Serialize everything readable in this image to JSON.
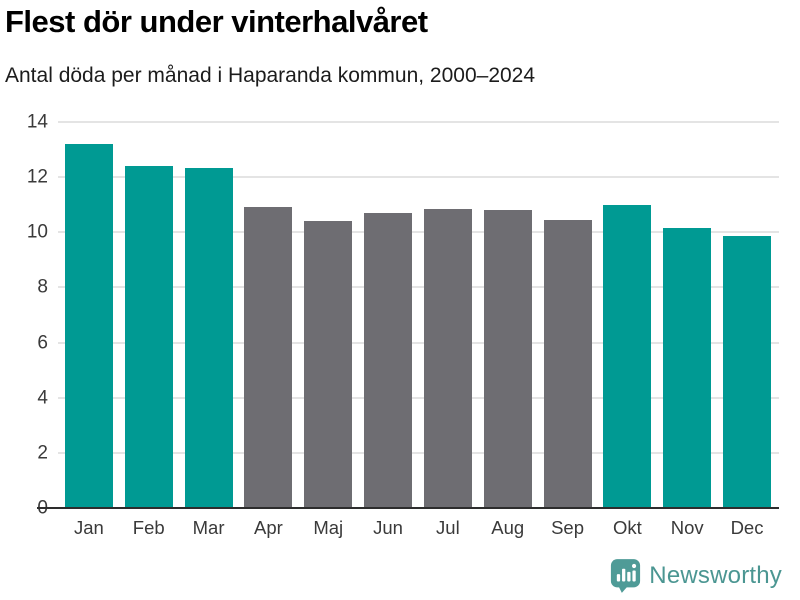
{
  "title": "Flest dör under vinterhalvåret",
  "subtitle": "Antal döda per månad i Haparanda kommun, 2000–2024",
  "branding": {
    "name": "Newsworthy",
    "icon": "newsworthy-speech-bubble-barchart-icon",
    "color": "#4b9692",
    "icon_color": "#4f9b97"
  },
  "colors": {
    "winter_bar": "#009a93",
    "summer_bar": "#6e6d72",
    "gridline": "#e4e4e4",
    "axis_line": "#2d2d2d",
    "tick_text": "#3a3a3a"
  },
  "chart_data": {
    "type": "bar",
    "title": "Flest dör under vinterhalvåret",
    "subtitle": "Antal döda per månad i Haparanda kommun, 2000–2024",
    "categories": [
      "Jan",
      "Feb",
      "Mar",
      "Apr",
      "Maj",
      "Jun",
      "Jul",
      "Aug",
      "Sep",
      "Okt",
      "Nov",
      "Dec"
    ],
    "values": [
      13.2,
      12.4,
      12.35,
      10.9,
      10.4,
      10.7,
      10.85,
      10.8,
      10.45,
      11.0,
      10.15,
      9.85
    ],
    "bar_colors": [
      "#009a93",
      "#009a93",
      "#009a93",
      "#6e6d72",
      "#6e6d72",
      "#6e6d72",
      "#6e6d72",
      "#6e6d72",
      "#6e6d72",
      "#009a93",
      "#009a93",
      "#009a93"
    ],
    "highlighted_categories": [
      "Jan",
      "Feb",
      "Mar",
      "Okt",
      "Nov",
      "Dec"
    ],
    "xlabel": "",
    "ylabel": "",
    "ylim": [
      0,
      14
    ],
    "yticks": [
      0,
      2,
      4,
      6,
      8,
      10,
      12,
      14
    ],
    "grid": true,
    "legend": false
  }
}
